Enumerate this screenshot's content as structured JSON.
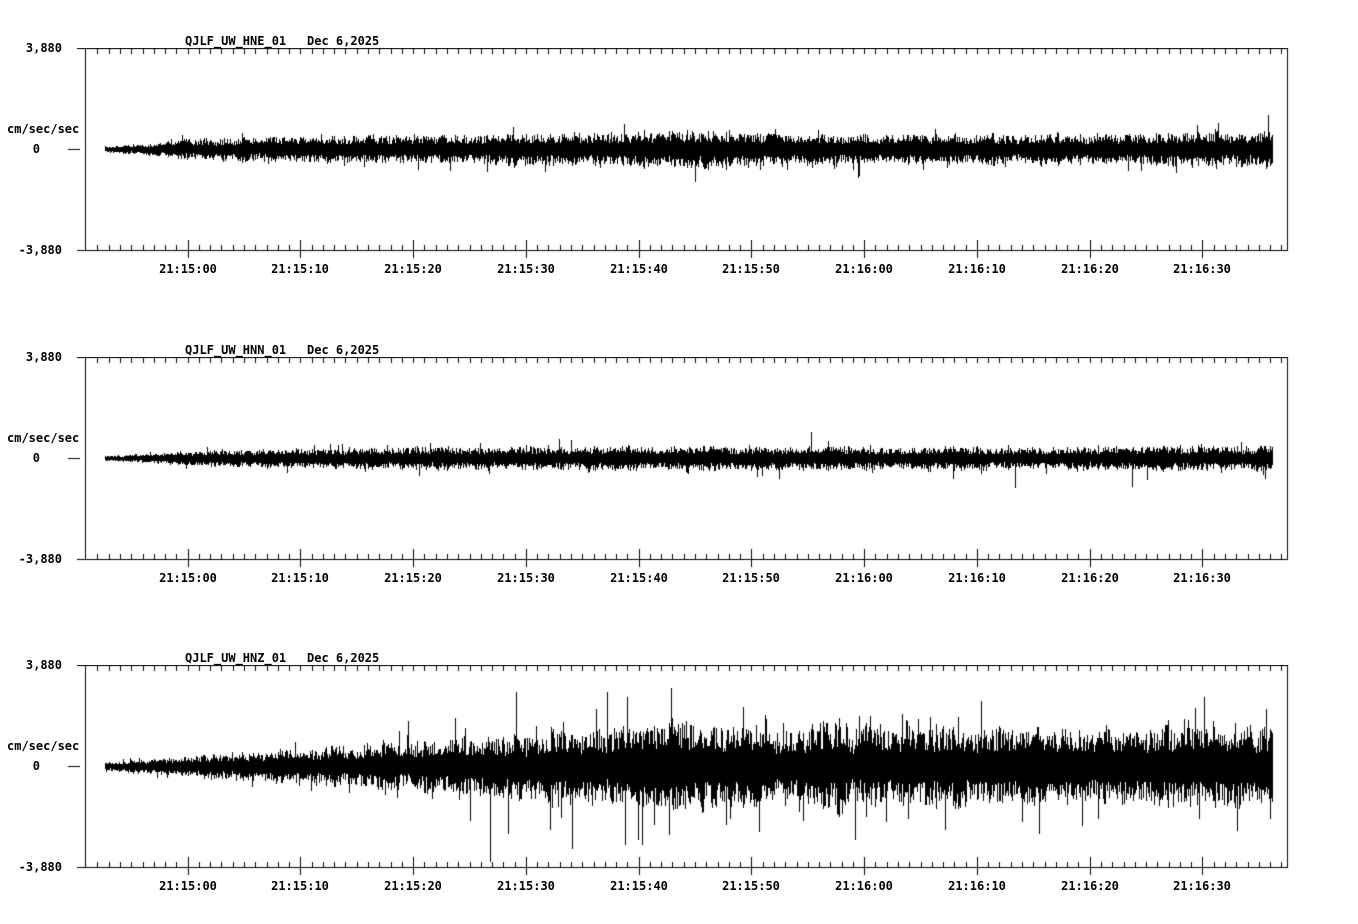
{
  "page": {
    "background": "#ffffff",
    "foreground": "#000000"
  },
  "chart_data": [
    {
      "type": "line",
      "subtype": "seismogram",
      "title": "QJLF_UW_HNE_01",
      "date_label": "Dec 6,2025",
      "ylabel": "cm/sec/sec",
      "y_ticks": [
        "3,880",
        "0",
        "-3,880"
      ],
      "ylim": [
        -3.88,
        3.88
      ],
      "decimal_separator": "comma",
      "x_tick_labels": [
        "21:15:00",
        "21:15:10",
        "21:15:20",
        "21:15:30",
        "21:15:40",
        "21:15:50",
        "21:16:00",
        "21:16:10",
        "21:16:20",
        "21:16:30"
      ],
      "x_major_ticks_s": [
        0,
        10,
        20,
        30,
        40,
        50,
        60,
        70,
        80,
        90
      ],
      "x_minor_tick_interval_s": 1,
      "axis_window_s": {
        "start": -9.1,
        "end": 97.5
      },
      "wave_window_s": {
        "start": -7.3,
        "end": 96.2
      },
      "grid": false,
      "legend": "none",
      "seed": 20251206,
      "noise_envelope": [
        [
          0,
          0.07
        ],
        [
          0.02,
          0.12
        ],
        [
          0.08,
          0.28
        ],
        [
          0.18,
          0.36
        ],
        [
          0.3,
          0.4
        ],
        [
          0.42,
          0.44
        ],
        [
          0.5,
          0.48
        ],
        [
          0.58,
          0.44
        ],
        [
          0.7,
          0.4
        ],
        [
          0.8,
          0.42
        ],
        [
          0.9,
          0.44
        ],
        [
          1,
          0.5
        ]
      ],
      "spike_factor": 2.2,
      "spike_prob": 0.05,
      "extreme_spikes": []
    },
    {
      "type": "line",
      "subtype": "seismogram",
      "title": "QJLF_UW_HNN_01",
      "date_label": "Dec 6,2025",
      "ylabel": "cm/sec/sec",
      "y_ticks": [
        "3,880",
        "0",
        "-3,880"
      ],
      "ylim": [
        -3.88,
        3.88
      ],
      "decimal_separator": "comma",
      "x_tick_labels": [
        "21:15:00",
        "21:15:10",
        "21:15:20",
        "21:15:30",
        "21:15:40",
        "21:15:50",
        "21:16:00",
        "21:16:10",
        "21:16:20",
        "21:16:30"
      ],
      "x_major_ticks_s": [
        0,
        10,
        20,
        30,
        40,
        50,
        60,
        70,
        80,
        90
      ],
      "x_minor_tick_interval_s": 1,
      "axis_window_s": {
        "start": -9.1,
        "end": 97.5
      },
      "wave_window_s": {
        "start": -7.3,
        "end": 96.2
      },
      "grid": false,
      "legend": "none",
      "seed": 20251207,
      "noise_envelope": [
        [
          0,
          0.06
        ],
        [
          0.03,
          0.1
        ],
        [
          0.1,
          0.22
        ],
        [
          0.2,
          0.28
        ],
        [
          0.35,
          0.32
        ],
        [
          0.5,
          0.34
        ],
        [
          0.65,
          0.3
        ],
        [
          0.8,
          0.3
        ],
        [
          1,
          0.33
        ]
      ],
      "spike_factor": 2.2,
      "spike_prob": 0.05,
      "extreme_spikes": [
        {
          "f": 0.78,
          "amp": -1.15
        },
        {
          "f": 0.88,
          "amp": -1.1
        }
      ]
    },
    {
      "type": "line",
      "subtype": "seismogram",
      "title": "QJLF_UW_HNZ_01",
      "date_label": "Dec 6,2025",
      "ylabel": "cm/sec/sec",
      "y_ticks": [
        "3,880",
        "0",
        "-3,880"
      ],
      "ylim": [
        -3.88,
        3.88
      ],
      "decimal_separator": "comma",
      "x_tick_labels": [
        "21:15:00",
        "21:15:10",
        "21:15:20",
        "21:15:30",
        "21:15:40",
        "21:15:50",
        "21:16:00",
        "21:16:10",
        "21:16:20",
        "21:16:30"
      ],
      "x_major_ticks_s": [
        0,
        10,
        20,
        30,
        40,
        50,
        60,
        70,
        80,
        90
      ],
      "x_minor_tick_interval_s": 1,
      "axis_window_s": {
        "start": -9.1,
        "end": 97.5
      },
      "wave_window_s": {
        "start": -7.3,
        "end": 96.2
      },
      "grid": false,
      "legend": "none",
      "seed": 20251208,
      "noise_envelope": [
        [
          0,
          0.1
        ],
        [
          0.04,
          0.2
        ],
        [
          0.1,
          0.35
        ],
        [
          0.2,
          0.55
        ],
        [
          0.3,
          0.8
        ],
        [
          0.4,
          1.05
        ],
        [
          0.48,
          1.2
        ],
        [
          0.55,
          1.1
        ],
        [
          0.62,
          1.15
        ],
        [
          0.7,
          1.05
        ],
        [
          0.78,
          1.15
        ],
        [
          0.85,
          1.05
        ],
        [
          0.93,
          1.1
        ],
        [
          1,
          1.2
        ]
      ],
      "spike_factor": 2.4,
      "spike_prob": 0.07,
      "extreme_spikes": [
        {
          "f": 0.33,
          "amp": -3.7
        },
        {
          "f": 0.345,
          "amp": -2.6
        },
        {
          "f": 0.4,
          "amp": -3.2
        },
        {
          "f": 0.43,
          "amp": 2.85
        },
        {
          "f": 0.46,
          "amp": -3.05
        },
        {
          "f": 0.485,
          "amp": 3.0
        },
        {
          "f": 0.56,
          "amp": -2.55
        },
        {
          "f": 0.8,
          "amp": -2.6
        },
        {
          "f": 0.97,
          "amp": -2.5
        }
      ]
    }
  ]
}
